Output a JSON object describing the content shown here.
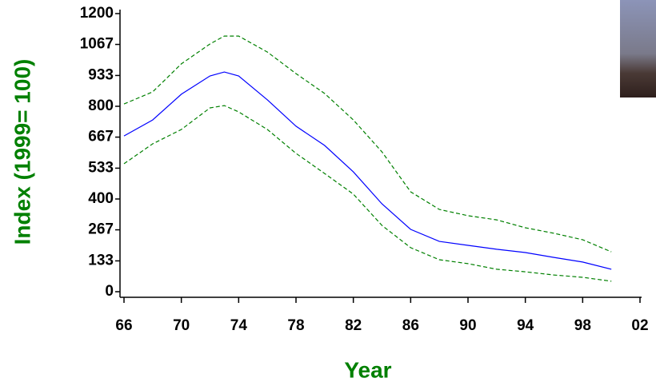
{
  "chart_data": {
    "type": "line",
    "xlabel": "Year",
    "ylabel": "Index (1999= 100)",
    "x": [
      66,
      68,
      70,
      72,
      73,
      74,
      76,
      78,
      80,
      82,
      84,
      86,
      88,
      90,
      92,
      94,
      96,
      98,
      100
    ],
    "series": [
      {
        "color": "#0000ff",
        "style": "solid",
        "values": [
          672,
          741,
          852,
          931,
          948,
          931,
          828,
          714,
          631,
          517,
          379,
          269,
          217,
          200,
          183,
          169,
          148,
          128,
          97
        ]
      },
      {
        "color": "#008000",
        "style": "dashed",
        "values": [
          810,
          862,
          983,
          1069,
          1103,
          1103,
          1034,
          941,
          855,
          741,
          603,
          431,
          355,
          328,
          310,
          276,
          252,
          224,
          172
        ]
      },
      {
        "color": "#008000",
        "style": "dashed",
        "values": [
          552,
          638,
          700,
          793,
          803,
          776,
          700,
          597,
          510,
          421,
          286,
          190,
          138,
          121,
          97,
          86,
          72,
          62,
          45
        ]
      }
    ],
    "xlim": [
      66,
      102
    ],
    "ylim": [
      0,
      1200
    ],
    "xticks": [
      66,
      70,
      74,
      78,
      82,
      86,
      90,
      94,
      98,
      {
        "value": 102,
        "label": "02"
      }
    ],
    "yticks": [
      0,
      133,
      267,
      400,
      533,
      667,
      800,
      933,
      1067,
      1200
    ],
    "label_color": "#008000"
  }
}
